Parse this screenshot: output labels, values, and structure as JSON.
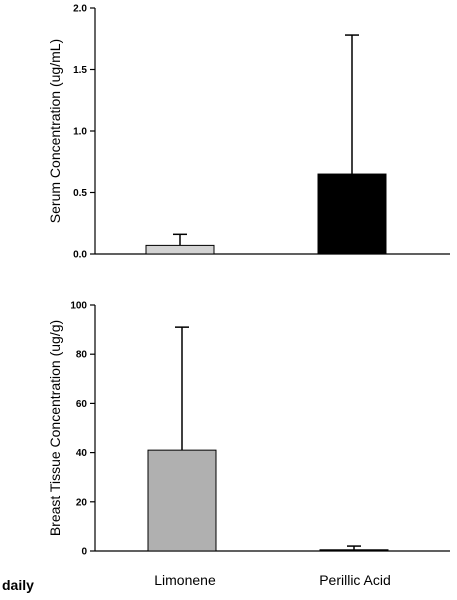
{
  "footer_label": "daily",
  "chart_data": [
    {
      "type": "bar",
      "categories": [
        "Limonene",
        "Perillic Acid"
      ],
      "values": [
        0.07,
        0.65
      ],
      "error_upper": [
        0.16,
        1.78
      ],
      "bar_colors": [
        "#d3d3d3",
        "#000000"
      ],
      "ylabel": "Serum Concentration (ug/mL)",
      "ylim": [
        0.0,
        2.0
      ],
      "yticks": [
        "0.0",
        "0.5",
        "1.0",
        "1.5",
        "2.0"
      ],
      "ytick_values": [
        0.0,
        0.5,
        1.0,
        1.5,
        2.0
      ]
    },
    {
      "type": "bar",
      "categories": [
        "Limonene",
        "Perillic Acid"
      ],
      "values": [
        41,
        0.5
      ],
      "error_upper": [
        91,
        2
      ],
      "bar_colors": [
        "#b0b0b0",
        "#000000"
      ],
      "ylabel": "Breast Tissue Concentration (ug/g)",
      "ylim": [
        0,
        100
      ],
      "yticks": [
        "0",
        "20",
        "40",
        "60",
        "80",
        "100"
      ],
      "ytick_values": [
        0,
        20,
        40,
        60,
        80,
        100
      ]
    }
  ]
}
